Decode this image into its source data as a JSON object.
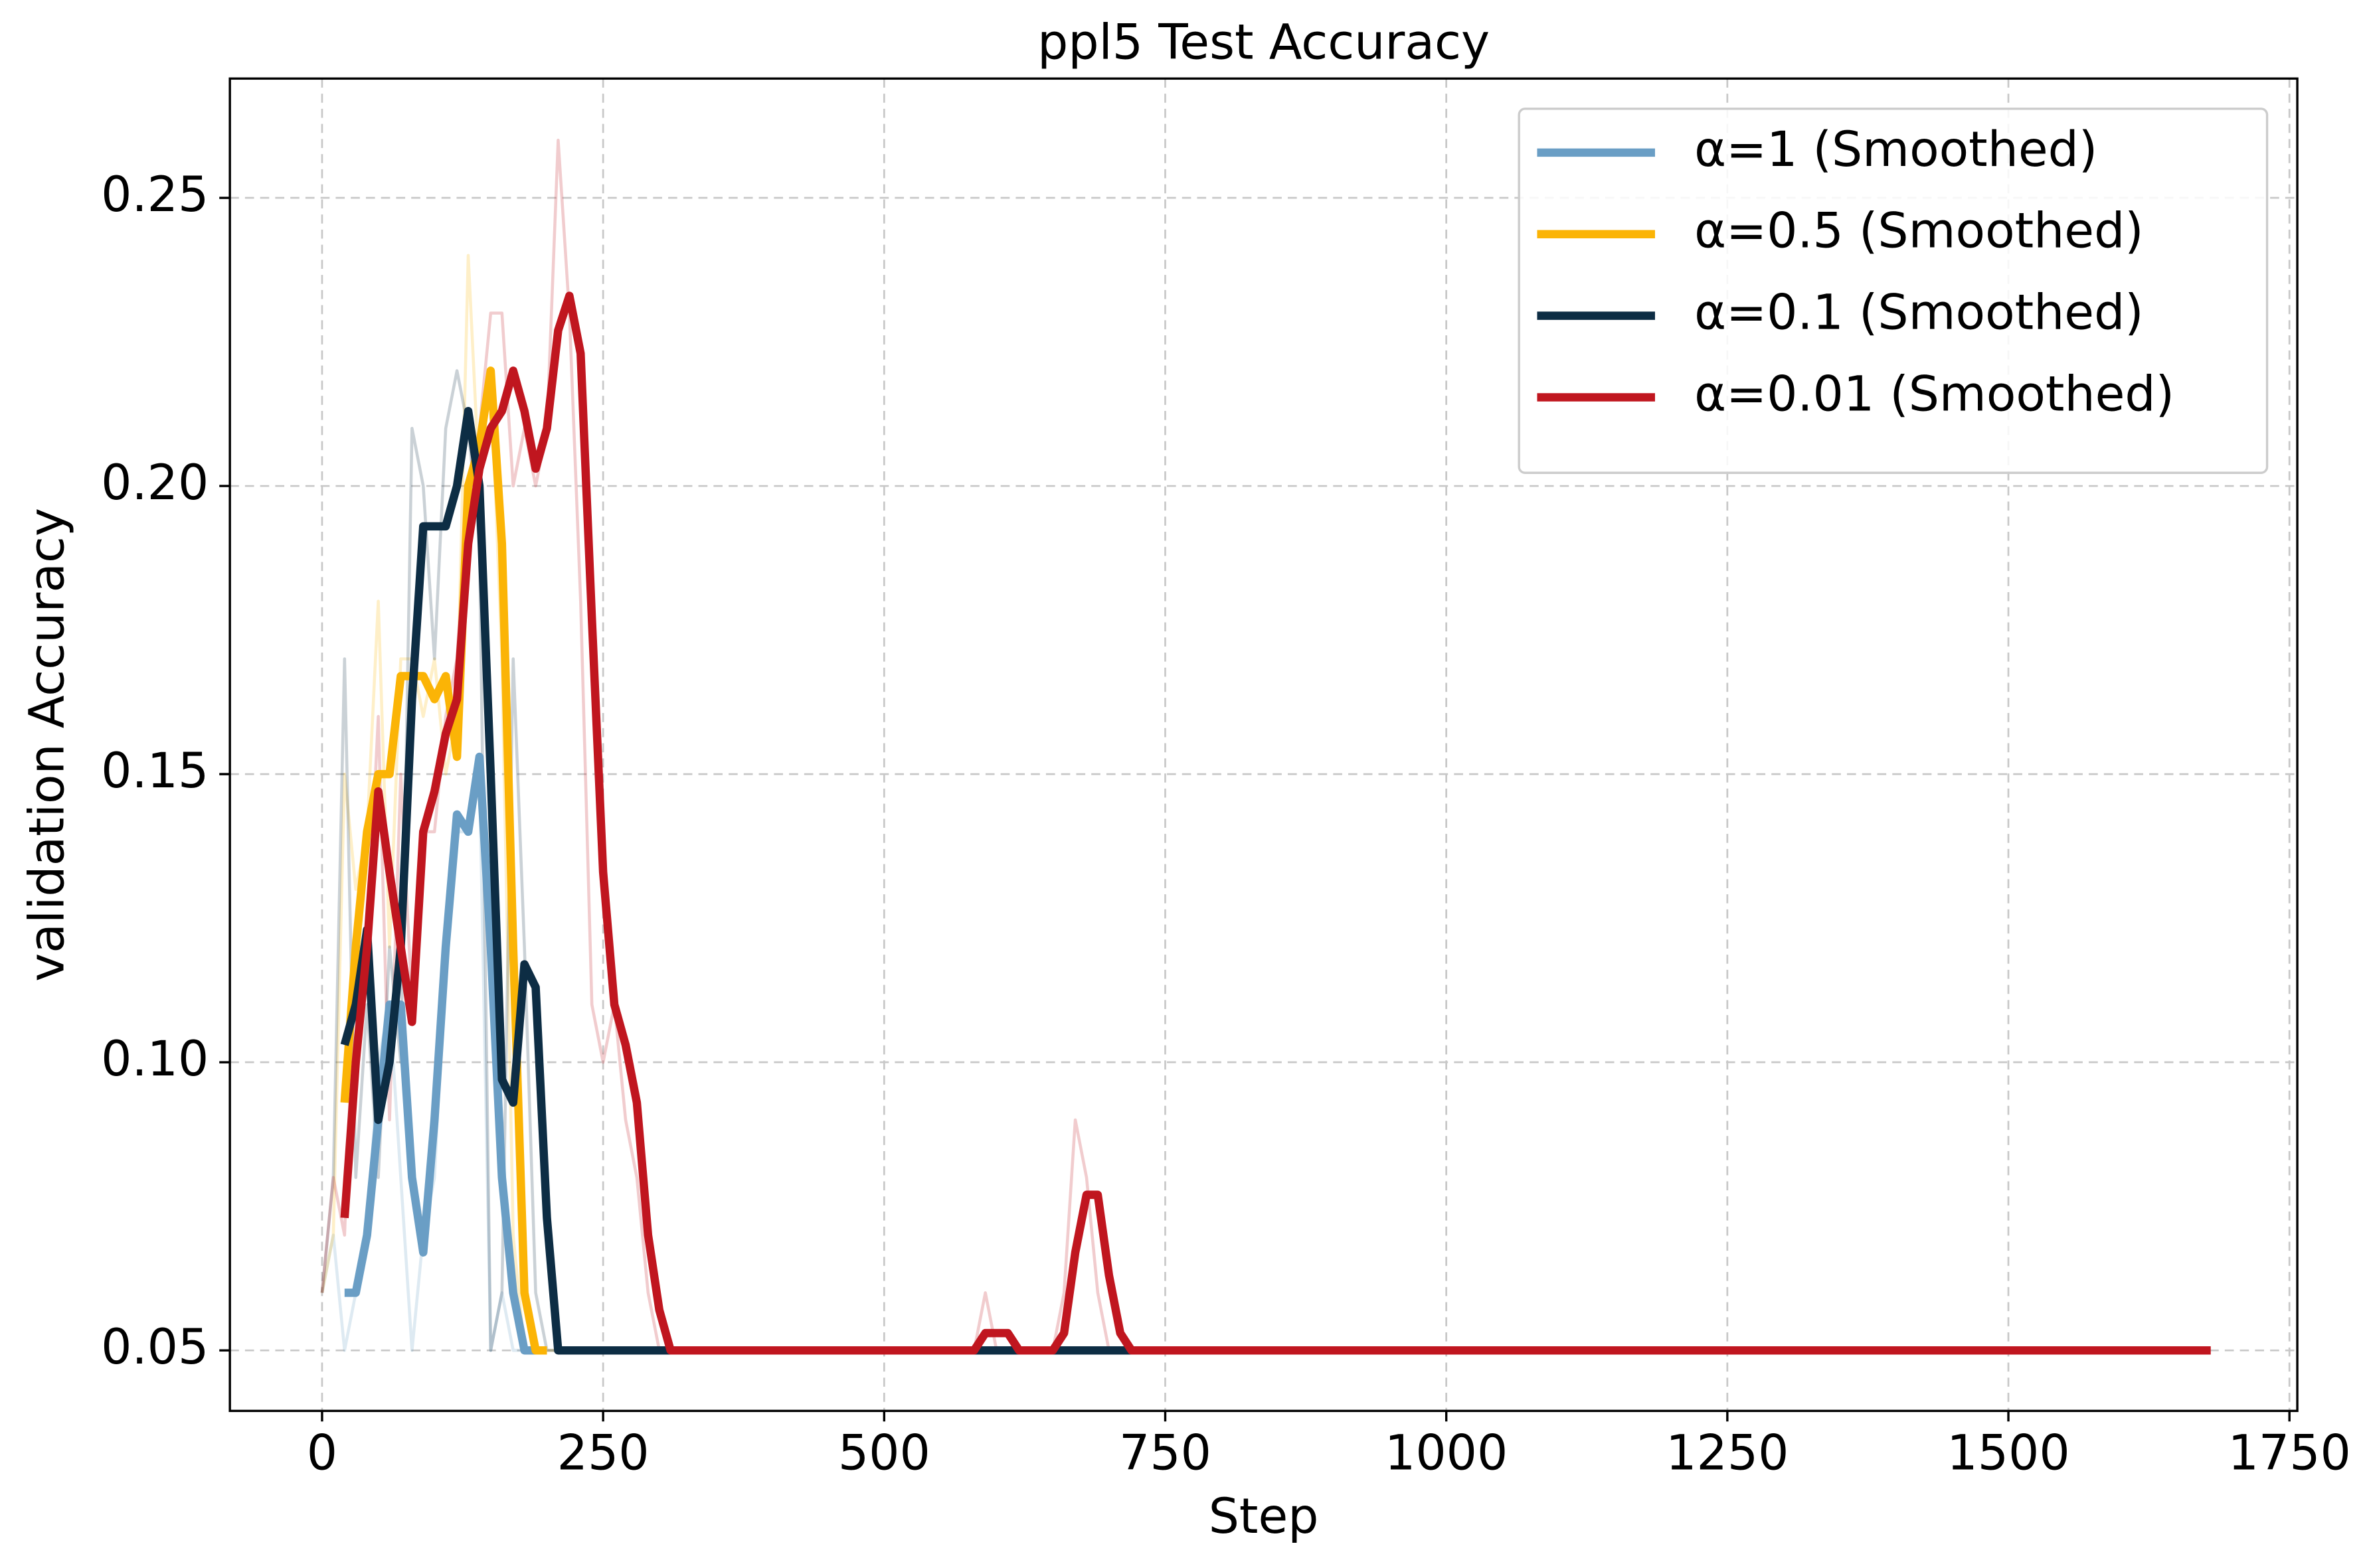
{
  "chart_data": {
    "type": "line",
    "title": "ppl5 Test Accuracy",
    "x_label": "Step",
    "y_label": "validation Accuracy",
    "xlim": [
      -82,
      1757
    ],
    "ylim": [
      0.0395,
      0.2707
    ],
    "xticks": [
      0,
      250,
      500,
      750,
      1000,
      1250,
      1500,
      1750
    ],
    "yticks": [
      0.05,
      {
        "value": 0.1,
        "label": "0.10"
      },
      0.15,
      {
        "value": 0.2,
        "label": "0.20"
      },
      0.25
    ],
    "grid": true,
    "legend": "upper right",
    "series": [
      {
        "name": "α=1 (Smoothed)",
        "color": "#6a9ec5",
        "x": [
          20,
          30,
          40,
          50,
          60,
          70,
          80,
          90,
          100,
          110,
          120,
          130,
          140,
          150,
          160,
          170,
          180,
          190
        ],
        "values": [
          0.06,
          0.06,
          0.07,
          0.09,
          0.11,
          0.11,
          0.08,
          0.067,
          0.09,
          0.12,
          0.143,
          0.14,
          0.153,
          0.12,
          0.08,
          0.06,
          0.05,
          0.05
        ]
      },
      {
        "name": "α=0.5 (Smoothed)",
        "color": "#fbb406",
        "x": [
          20,
          30,
          40,
          50,
          60,
          70,
          80,
          90,
          100,
          110,
          120,
          130,
          140,
          150,
          160,
          170,
          180,
          190,
          200
        ],
        "values": [
          0.093,
          0.12,
          0.14,
          0.15,
          0.15,
          0.167,
          0.167,
          0.167,
          0.163,
          0.167,
          0.153,
          0.2,
          0.207,
          0.22,
          0.19,
          0.12,
          0.06,
          0.05,
          0.05
        ]
      },
      {
        "name": "α=0.1 (Smoothed)",
        "color": "#0d2d44",
        "x": [
          20,
          30,
          40,
          50,
          60,
          70,
          80,
          90,
          100,
          110,
          120,
          130,
          140,
          150,
          160,
          170,
          180,
          190,
          200,
          210,
          720
        ],
        "values": [
          0.103,
          0.11,
          0.123,
          0.09,
          0.1,
          0.12,
          0.163,
          0.193,
          0.193,
          0.193,
          0.2,
          0.213,
          0.2,
          0.15,
          0.097,
          0.093,
          0.117,
          0.113,
          0.073,
          0.05,
          0.05
        ]
      },
      {
        "name": "α=0.01 (Smoothed)",
        "color": "#c0161f",
        "x": [
          20,
          30,
          40,
          50,
          60,
          70,
          80,
          90,
          100,
          110,
          120,
          130,
          140,
          150,
          160,
          170,
          180,
          190,
          200,
          210,
          220,
          230,
          240,
          250,
          260,
          270,
          280,
          290,
          300,
          310,
          580,
          590,
          600,
          610,
          620,
          630,
          640,
          650,
          660,
          670,
          680,
          690,
          700,
          710,
          720,
          1680
        ],
        "values": [
          0.073,
          0.1,
          0.12,
          0.147,
          0.133,
          0.12,
          0.107,
          0.14,
          0.147,
          0.157,
          0.163,
          0.19,
          0.203,
          0.21,
          0.213,
          0.22,
          0.213,
          0.203,
          0.21,
          0.227,
          0.233,
          0.223,
          0.177,
          0.133,
          0.11,
          0.103,
          0.093,
          0.07,
          0.057,
          0.05,
          0.05,
          0.053,
          0.053,
          0.053,
          0.05,
          0.05,
          0.05,
          0.05,
          0.053,
          0.067,
          0.077,
          0.077,
          0.063,
          0.053,
          0.05,
          0.05
        ]
      }
    ],
    "raw_series": [
      {
        "color": "#6a9ec5",
        "x": [
          0,
          10,
          20,
          30,
          40,
          50,
          60,
          70,
          80,
          90,
          100,
          110,
          120,
          130,
          140,
          150,
          160,
          170,
          180,
          190,
          200
        ],
        "values": [
          0.06,
          0.07,
          0.05,
          0.06,
          0.07,
          0.1,
          0.11,
          0.08,
          0.05,
          0.07,
          0.08,
          0.12,
          0.14,
          0.14,
          0.15,
          0.05,
          0.06,
          0.05,
          0.05,
          0.05,
          0.05
        ]
      },
      {
        "color": "#fbb406",
        "x": [
          0,
          10,
          20,
          30,
          40,
          50,
          60,
          70,
          80,
          90,
          100,
          110,
          120,
          130,
          140,
          150,
          160,
          170,
          180,
          190,
          200,
          210
        ],
        "values": [
          0.06,
          0.07,
          0.15,
          0.13,
          0.14,
          0.18,
          0.12,
          0.17,
          0.17,
          0.16,
          0.17,
          0.15,
          0.16,
          0.24,
          0.2,
          0.22,
          0.17,
          0.07,
          0.05,
          0.05,
          0.05,
          0.05
        ]
      },
      {
        "color": "#0d2d44",
        "x": [
          0,
          10,
          20,
          30,
          40,
          50,
          60,
          70,
          80,
          90,
          100,
          110,
          120,
          130,
          140,
          150,
          160,
          170,
          180,
          190,
          200,
          210,
          220
        ],
        "values": [
          0.06,
          0.08,
          0.17,
          0.08,
          0.11,
          0.08,
          0.12,
          0.1,
          0.21,
          0.2,
          0.17,
          0.21,
          0.22,
          0.21,
          0.19,
          0.05,
          0.06,
          0.17,
          0.12,
          0.06,
          0.05,
          0.05,
          0.05
        ]
      },
      {
        "color": "#c0161f",
        "x": [
          0,
          10,
          20,
          30,
          40,
          50,
          60,
          70,
          80,
          90,
          100,
          110,
          120,
          130,
          140,
          150,
          160,
          170,
          180,
          190,
          200,
          210,
          220,
          230,
          240,
          250,
          260,
          270,
          280,
          290,
          300,
          310,
          580,
          590,
          600,
          650,
          660,
          670,
          680,
          690,
          700,
          1680
        ],
        "values": [
          0.06,
          0.08,
          0.07,
          0.12,
          0.12,
          0.16,
          0.09,
          0.15,
          0.11,
          0.14,
          0.14,
          0.16,
          0.17,
          0.2,
          0.21,
          0.23,
          0.23,
          0.2,
          0.21,
          0.2,
          0.21,
          0.26,
          0.23,
          0.18,
          0.11,
          0.1,
          0.11,
          0.09,
          0.08,
          0.06,
          0.05,
          0.05,
          0.05,
          0.06,
          0.05,
          0.05,
          0.06,
          0.09,
          0.08,
          0.06,
          0.05,
          0.05
        ]
      }
    ]
  }
}
